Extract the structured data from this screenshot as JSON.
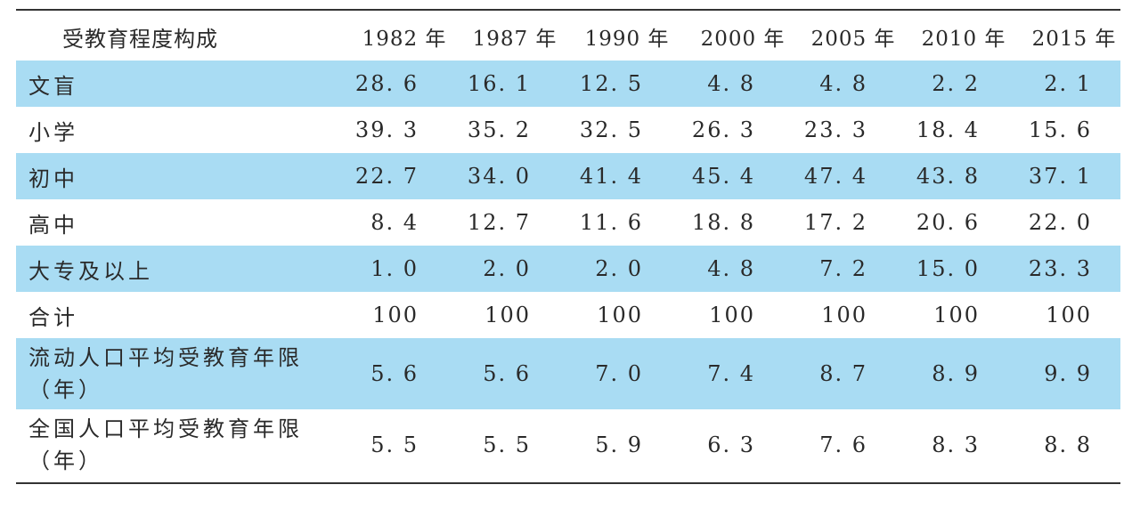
{
  "chart_data": {
    "type": "table",
    "columns": [
      "受教育程度构成",
      "1982 年",
      "1987 年",
      "1990 年",
      "2000 年",
      "2005 年",
      "2010 年",
      "2015 年"
    ],
    "rows": [
      {
        "label": "文盲",
        "values": [
          "28. 6",
          "16. 1",
          "12. 5",
          "4. 8",
          "4. 8",
          "2. 2",
          "2. 1"
        ],
        "shaded": true
      },
      {
        "label": "小学",
        "values": [
          "39. 3",
          "35. 2",
          "32. 5",
          "26. 3",
          "23. 3",
          "18. 4",
          "15. 6"
        ],
        "shaded": false
      },
      {
        "label": "初中",
        "values": [
          "22. 7",
          "34. 0",
          "41. 4",
          "45. 4",
          "47. 4",
          "43. 8",
          "37. 1"
        ],
        "shaded": true
      },
      {
        "label": "高中",
        "values": [
          "8. 4",
          "12. 7",
          "11. 6",
          "18. 8",
          "17. 2",
          "20. 6",
          "22. 0"
        ],
        "shaded": false
      },
      {
        "label": "大专及以上",
        "values": [
          "1. 0",
          "2. 0",
          "2. 0",
          "4. 8",
          "7. 2",
          "15. 0",
          "23. 3"
        ],
        "shaded": true
      },
      {
        "label": "合计",
        "values": [
          "100",
          "100",
          "100",
          "100",
          "100",
          "100",
          "100"
        ],
        "shaded": false
      },
      {
        "label": "流动人口平均受教育年限（年）",
        "values": [
          "5. 6",
          "5. 6",
          "7. 0",
          "7. 4",
          "8. 7",
          "8. 9",
          "9. 9"
        ],
        "shaded": true
      },
      {
        "label": "全国人口平均受教育年限（年）",
        "values": [
          "5. 5",
          "5. 5",
          "5. 9",
          "6. 3",
          "7. 6",
          "8. 3",
          "8. 8"
        ],
        "shaded": false
      }
    ],
    "row_band_color": "#a9dcf3",
    "rule_color": "#333333"
  }
}
